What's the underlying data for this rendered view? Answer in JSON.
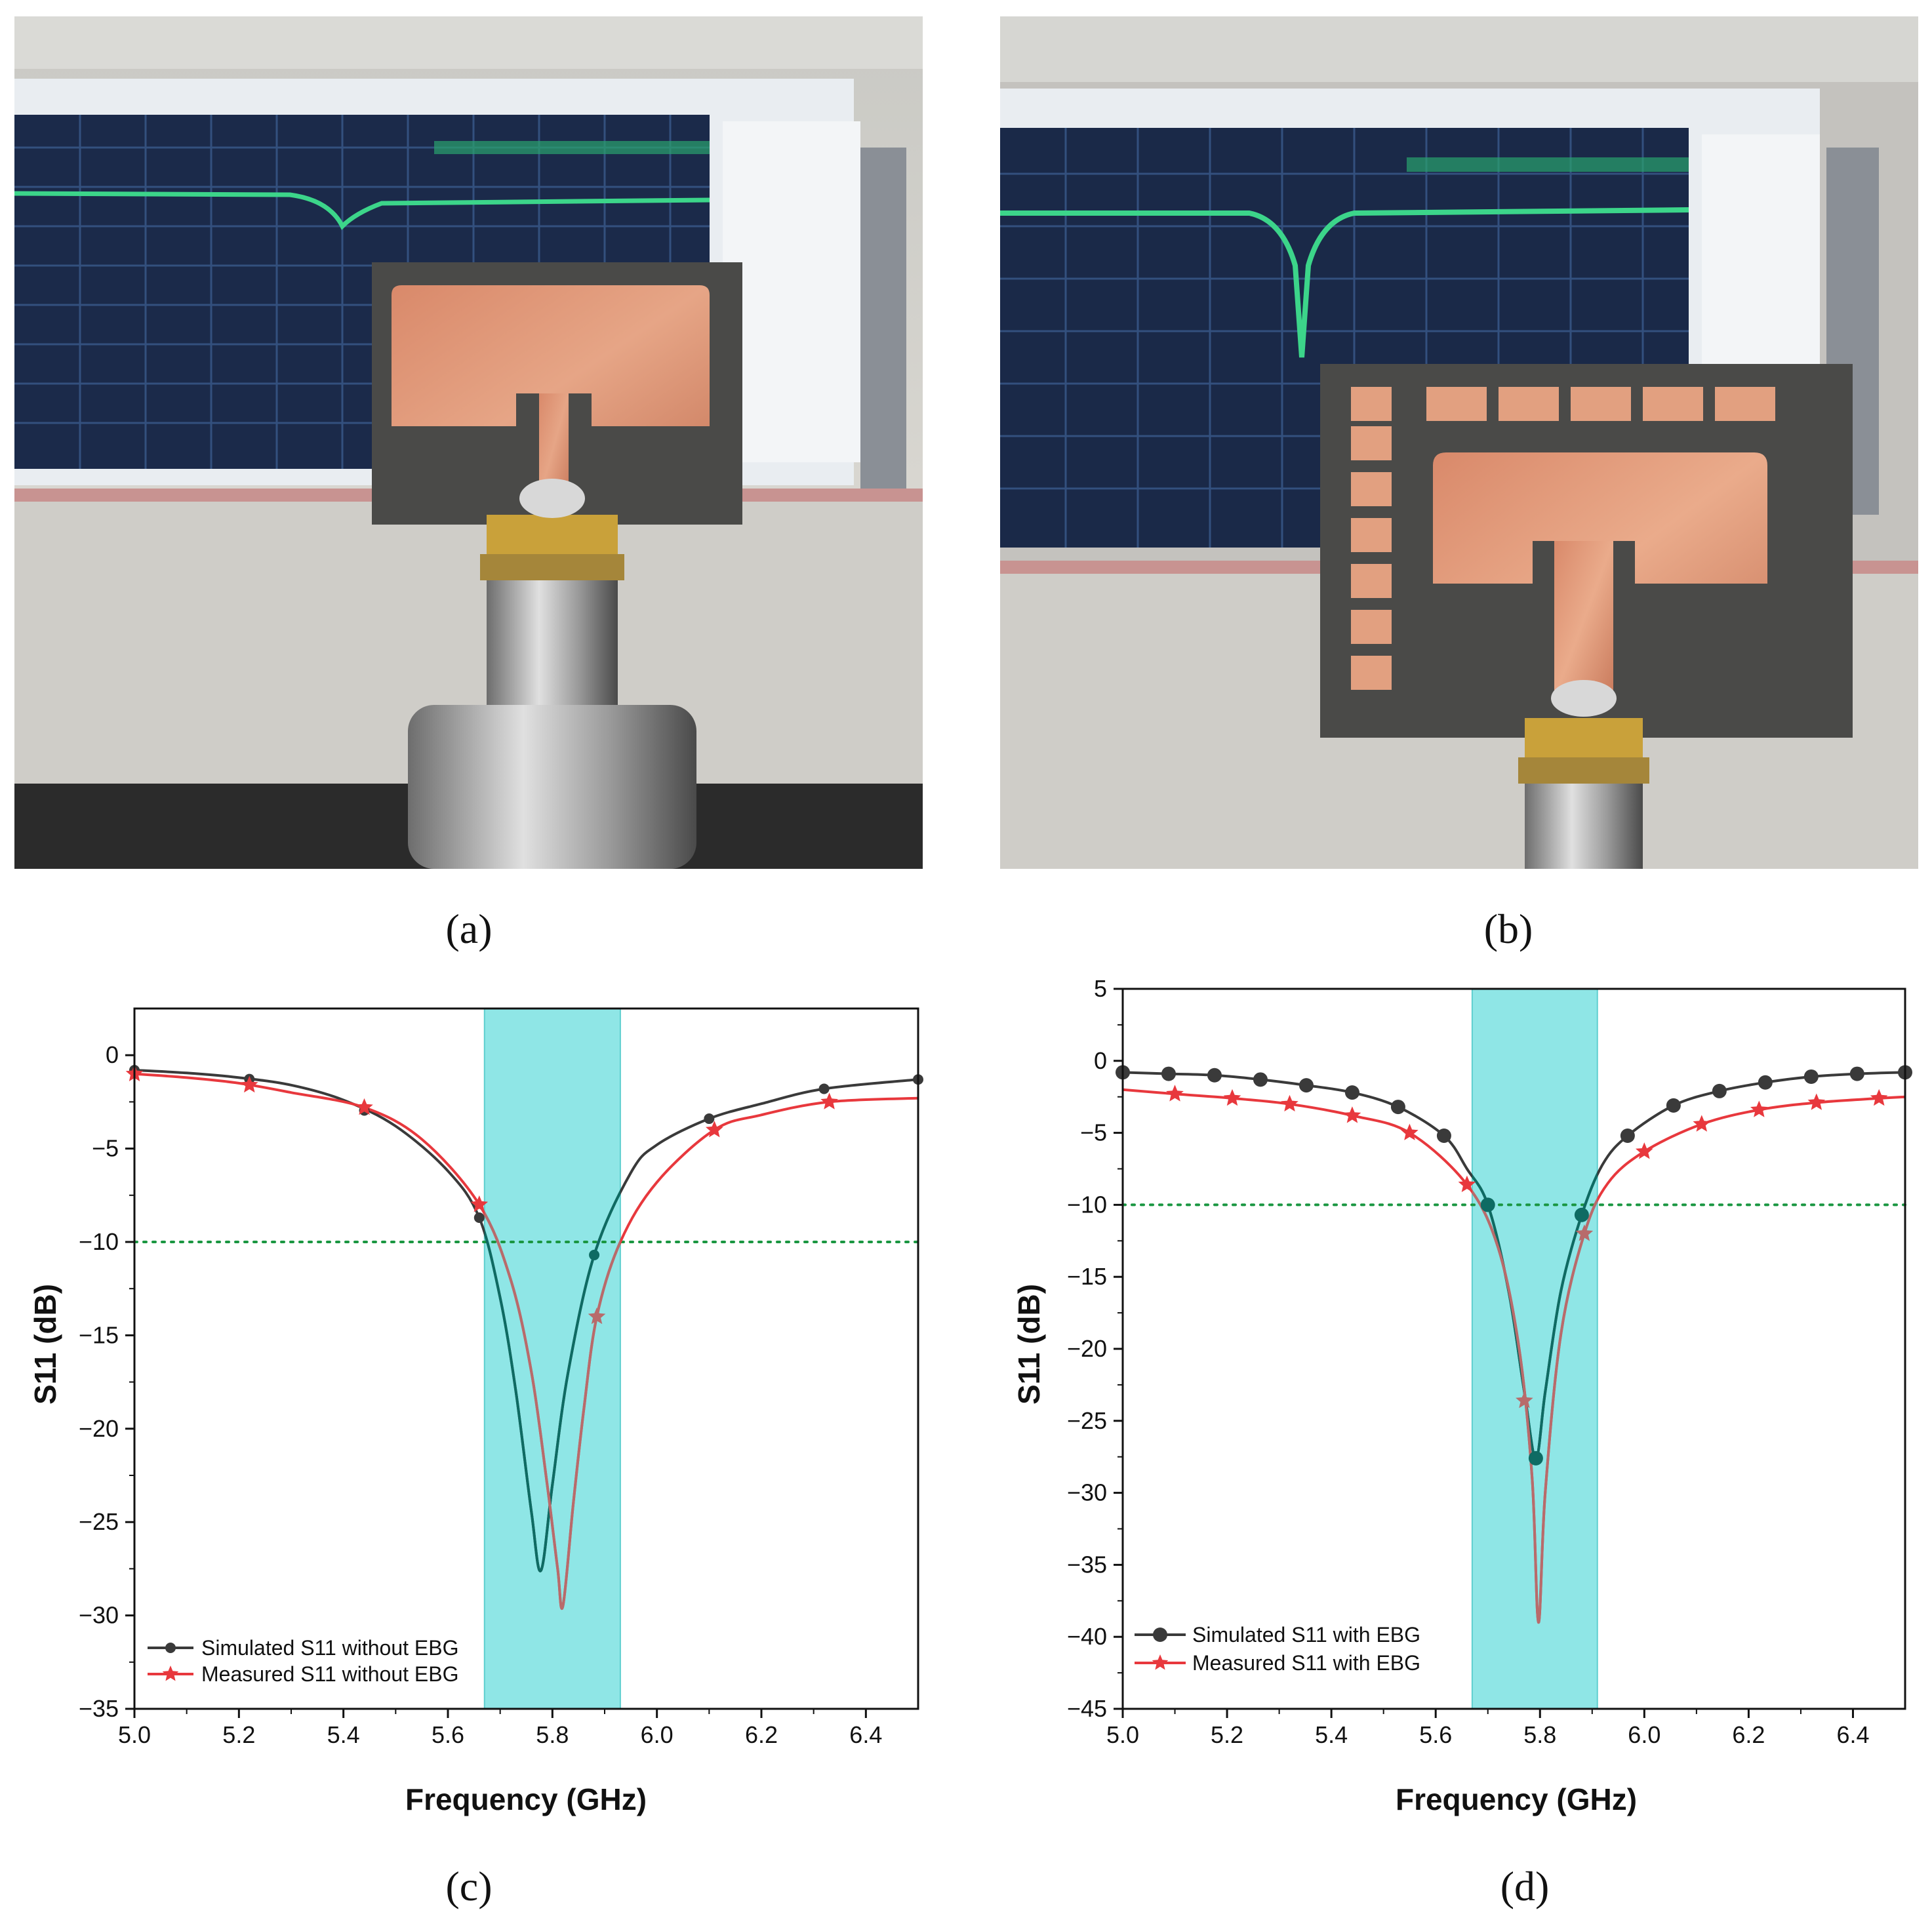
{
  "captions": {
    "a": "(a)",
    "b": "(b)",
    "c": "(c)",
    "d": "(d)"
  },
  "colors": {
    "simulated": "#3a3a3a",
    "simulated_dip": "#0e6b63",
    "measured": "#e8383d",
    "measured_dip": "#b86b6b",
    "band": "#8fe6e6",
    "threshold": "#1a9641"
  },
  "chart_data": [
    {
      "id": "c",
      "type": "line",
      "title": "",
      "xlabel": "Frequency (GHz)",
      "ylabel": "S11 (dB)",
      "xlim": [
        5.0,
        6.5
      ],
      "ylim": [
        -35,
        2.5
      ],
      "xticks": [
        "5.0",
        "5.2",
        "5.4",
        "5.6",
        "5.8",
        "6.0",
        "6.2",
        "6.4"
      ],
      "xtick_values": [
        5.0,
        5.2,
        5.4,
        5.6,
        5.8,
        6.0,
        6.2,
        6.4
      ],
      "yticks": [
        "0",
        "-5",
        "-10",
        "-15",
        "-20",
        "-25",
        "-30",
        "-35"
      ],
      "ytick_values": [
        0,
        -5,
        -10,
        -15,
        -20,
        -25,
        -30,
        -35
      ],
      "threshold_db": -10,
      "band_ghz": [
        5.67,
        5.93
      ],
      "legend": [
        "Simulated S11 without EBG",
        "Measured S11 without EBG"
      ],
      "series": [
        {
          "name": "Simulated S11 without EBG",
          "marker": "circle",
          "x": [
            5.0,
            5.1,
            5.2,
            5.3,
            5.4,
            5.5,
            5.6,
            5.66,
            5.7,
            5.73,
            5.76,
            5.778,
            5.8,
            5.83,
            5.88,
            5.95,
            6.0,
            6.1,
            6.2,
            6.32,
            6.5
          ],
          "y": [
            -0.8,
            -0.95,
            -1.2,
            -1.6,
            -2.4,
            -3.8,
            -6.2,
            -8.7,
            -13.0,
            -18.0,
            -24.5,
            -27.6,
            -23.0,
            -17.0,
            -10.7,
            -6.3,
            -4.8,
            -3.4,
            -2.6,
            -1.8,
            -1.3
          ],
          "markers_x": [
            5.0,
            5.22,
            5.44,
            5.66,
            5.88,
            6.1,
            6.32,
            6.5
          ]
        },
        {
          "name": "Measured S11 without EBG",
          "marker": "star",
          "x": [
            5.0,
            5.1,
            5.2,
            5.3,
            5.44,
            5.55,
            5.66,
            5.72,
            5.76,
            5.79,
            5.81,
            5.82,
            5.84,
            5.86,
            5.885,
            5.93,
            6.0,
            6.11,
            6.2,
            6.33,
            6.5
          ],
          "y": [
            -1.0,
            -1.2,
            -1.5,
            -2.0,
            -2.8,
            -4.5,
            -8.0,
            -12.0,
            -17.0,
            -23.0,
            -27.5,
            -29.5,
            -24.0,
            -19.0,
            -14.0,
            -10.0,
            -6.8,
            -4.0,
            -3.2,
            -2.5,
            -2.3
          ],
          "markers_x": [
            5.0,
            5.22,
            5.44,
            5.66,
            5.885,
            6.11,
            6.33
          ]
        }
      ]
    },
    {
      "id": "d",
      "type": "line",
      "title": "",
      "xlabel": "Frequency (GHz)",
      "ylabel": "S11 (dB)",
      "xlim": [
        5.0,
        6.5
      ],
      "ylim": [
        -45,
        5
      ],
      "xticks": [
        "5.0",
        "5.2",
        "5.4",
        "5.6",
        "5.8",
        "6.0",
        "6.2",
        "6.4"
      ],
      "xtick_values": [
        5.0,
        5.2,
        5.4,
        5.6,
        5.8,
        6.0,
        6.2,
        6.4
      ],
      "yticks": [
        "5",
        "0",
        "-5",
        "-10",
        "-15",
        "-20",
        "-25",
        "-30",
        "-35",
        "-40",
        "-45"
      ],
      "ytick_values": [
        5,
        0,
        -5,
        -10,
        -15,
        -20,
        -25,
        -30,
        -35,
        -40,
        -45
      ],
      "threshold_db": -10,
      "band_ghz": [
        5.67,
        5.91
      ],
      "legend": [
        "Simulated S11 with EBG",
        "Measured S11 with EBG"
      ],
      "series": [
        {
          "name": "Simulated S11 with EBG",
          "marker": "circle",
          "x": [
            5.0,
            5.088,
            5.176,
            5.264,
            5.352,
            5.44,
            5.528,
            5.616,
            5.66,
            5.7,
            5.74,
            5.77,
            5.792,
            5.81,
            5.84,
            5.88,
            5.92,
            5.968,
            6.056,
            6.144,
            6.232,
            6.32,
            6.408,
            6.5
          ],
          "y": [
            -0.8,
            -0.9,
            -1.0,
            -1.3,
            -1.7,
            -2.2,
            -3.2,
            -5.2,
            -7.5,
            -10.0,
            -16.0,
            -23.0,
            -27.6,
            -23.0,
            -16.0,
            -10.7,
            -7.2,
            -5.2,
            -3.1,
            -2.1,
            -1.5,
            -1.1,
            -0.9,
            -0.8
          ],
          "markers_x": [
            5.0,
            5.088,
            5.176,
            5.264,
            5.352,
            5.44,
            5.528,
            5.616,
            5.7,
            5.792,
            5.88,
            5.968,
            6.056,
            6.144,
            6.232,
            6.32,
            6.408,
            6.5
          ]
        },
        {
          "name": "Measured S11 with EBG",
          "marker": "star",
          "x": [
            5.0,
            5.1,
            5.21,
            5.32,
            5.44,
            5.55,
            5.66,
            5.72,
            5.76,
            5.785,
            5.797,
            5.81,
            5.84,
            5.885,
            5.93,
            6.0,
            6.11,
            6.22,
            6.33,
            6.45,
            6.5
          ],
          "y": [
            -2.0,
            -2.3,
            -2.6,
            -3.0,
            -3.8,
            -5.0,
            -8.6,
            -13.0,
            -20.0,
            -29.0,
            -39.0,
            -30.0,
            -19.0,
            -12.0,
            -8.5,
            -6.3,
            -4.4,
            -3.4,
            -2.9,
            -2.6,
            -2.5
          ],
          "markers_x": [
            5.1,
            5.21,
            5.32,
            5.44,
            5.55,
            5.66,
            5.77,
            5.885,
            6.0,
            6.11,
            6.22,
            6.33,
            6.45
          ]
        }
      ]
    }
  ]
}
